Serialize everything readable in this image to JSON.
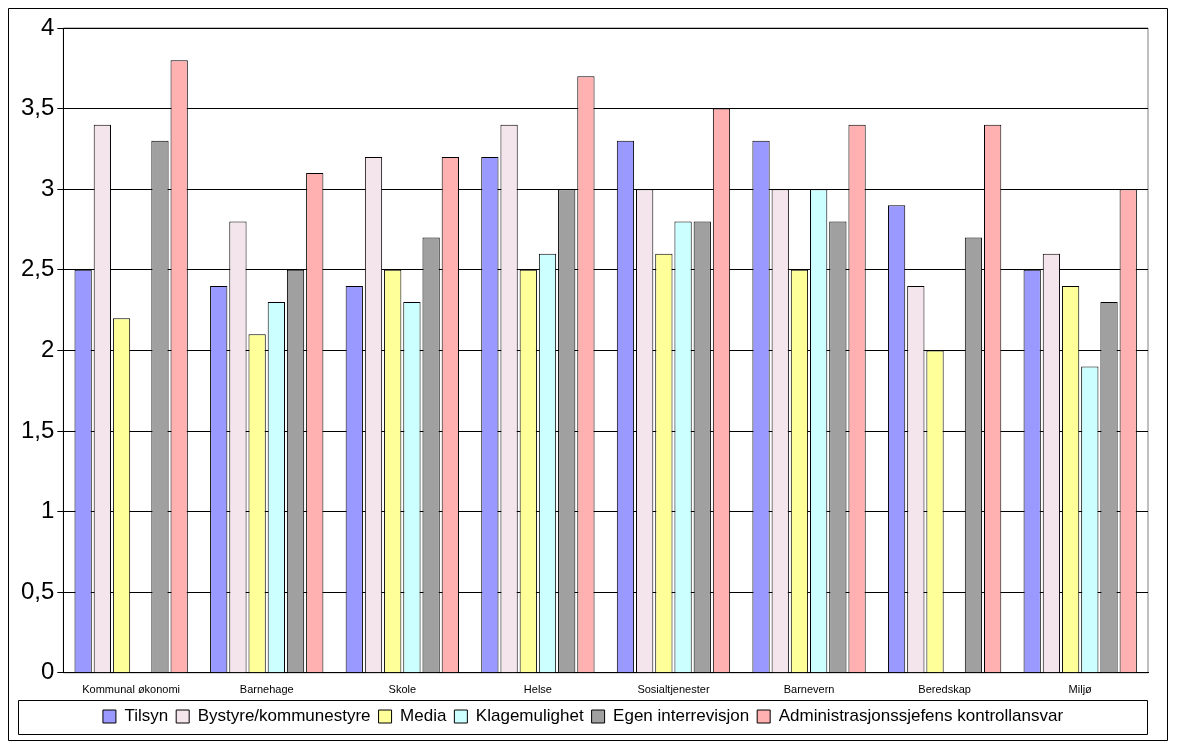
{
  "chart_data": {
    "type": "bar",
    "categories": [
      "Kommunal økonomi",
      "Barnehage",
      "Skole",
      "Helse",
      "Sosialtjenester",
      "Barnevern",
      "Beredskap",
      "Miljø"
    ],
    "series": [
      {
        "name": "Tilsyn",
        "color": "#9999ff",
        "values": [
          2.5,
          2.4,
          2.4,
          3.2,
          3.3,
          3.3,
          2.9,
          2.5
        ]
      },
      {
        "name": "Bystyre/kommunestyre",
        "color": "#f4e4ec",
        "values": [
          3.4,
          2.8,
          3.2,
          3.4,
          3.0,
          3.0,
          2.4,
          2.6
        ]
      },
      {
        "name": "Media",
        "color": "#ffff99",
        "values": [
          2.2,
          2.1,
          2.5,
          2.5,
          2.6,
          2.5,
          2.0,
          2.4
        ]
      },
      {
        "name": "Klagemulighet",
        "color": "#ccffff",
        "values": [
          null,
          2.3,
          2.3,
          2.6,
          2.8,
          3.0,
          null,
          1.9
        ]
      },
      {
        "name": "Egen interrevisjon",
        "color": "#a0a0a0",
        "values": [
          3.3,
          2.5,
          2.7,
          3.0,
          2.8,
          2.8,
          2.7,
          2.3
        ]
      },
      {
        "name": "Administrasjonssjefens kontrollansvar",
        "color": "#ffb0b0",
        "values": [
          3.8,
          3.1,
          3.2,
          3.7,
          3.5,
          3.4,
          3.4,
          3.0
        ]
      }
    ],
    "ylim": [
      0,
      4
    ],
    "yticks": [
      0,
      {
        "value": 0.5,
        "label": "0,5"
      },
      1,
      {
        "value": 1.5,
        "label": "1,5"
      },
      2,
      {
        "value": 2.5,
        "label": "2,5"
      },
      3,
      {
        "value": 3.5,
        "label": "3,5"
      },
      4
    ],
    "grid": "y",
    "legend": "bottom"
  }
}
